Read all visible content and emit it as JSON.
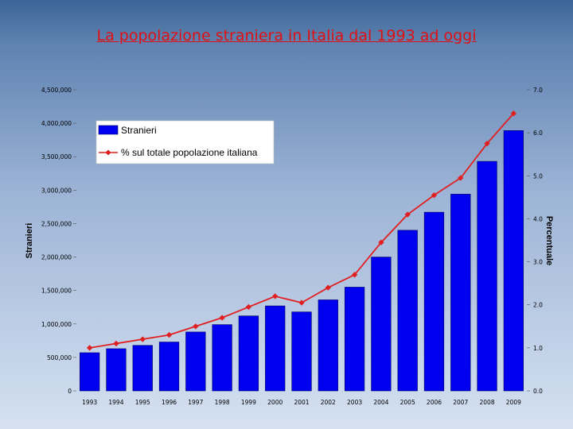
{
  "slide": {
    "title": "La popolazione straniera in Italia dal 1993 ad oggi"
  },
  "colors": {
    "bar": "#0000f0",
    "bar_edge": "#000060",
    "line": "#e02020",
    "title": "#e01010"
  },
  "chart_data": {
    "type": "bar",
    "categories": [
      "1993",
      "1994",
      "1995",
      "1996",
      "1997",
      "1998",
      "1999",
      "2000",
      "2001",
      "2002",
      "2003",
      "2004",
      "2005",
      "2006",
      "2007",
      "2008",
      "2009"
    ],
    "series": [
      {
        "name": "Stranieri",
        "type": "bar",
        "axis": "left",
        "values": [
          570000,
          630000,
          680000,
          730000,
          880000,
          990000,
          1120000,
          1270000,
          1180000,
          1360000,
          1550000,
          2000000,
          2400000,
          2670000,
          2940000,
          3430000,
          3890000
        ]
      },
      {
        "name": "% sul totale popolazione italiana",
        "type": "line",
        "axis": "right",
        "values": [
          1.0,
          1.1,
          1.2,
          1.3,
          1.5,
          1.7,
          1.95,
          2.2,
          2.05,
          2.4,
          2.7,
          3.45,
          4.1,
          4.55,
          4.95,
          5.75,
          6.45
        ]
      }
    ],
    "y_left": {
      "label": "Stranieri",
      "ylim": [
        0,
        4500000
      ],
      "ticks": [
        "0",
        "500,000",
        "1,000,000",
        "1,500,000",
        "2,000,000",
        "2,500,000",
        "3,000,000",
        "3,500,000",
        "4,000,000",
        "4,500,000"
      ]
    },
    "y_right": {
      "label": "Percentuale",
      "ylim": [
        0,
        7
      ],
      "ticks": [
        "0.0",
        "1.0",
        "2.0",
        "3.0",
        "4.0",
        "5.0",
        "6.0",
        "7.0"
      ]
    },
    "legend": {
      "position": "top-left"
    },
    "grid": false
  }
}
